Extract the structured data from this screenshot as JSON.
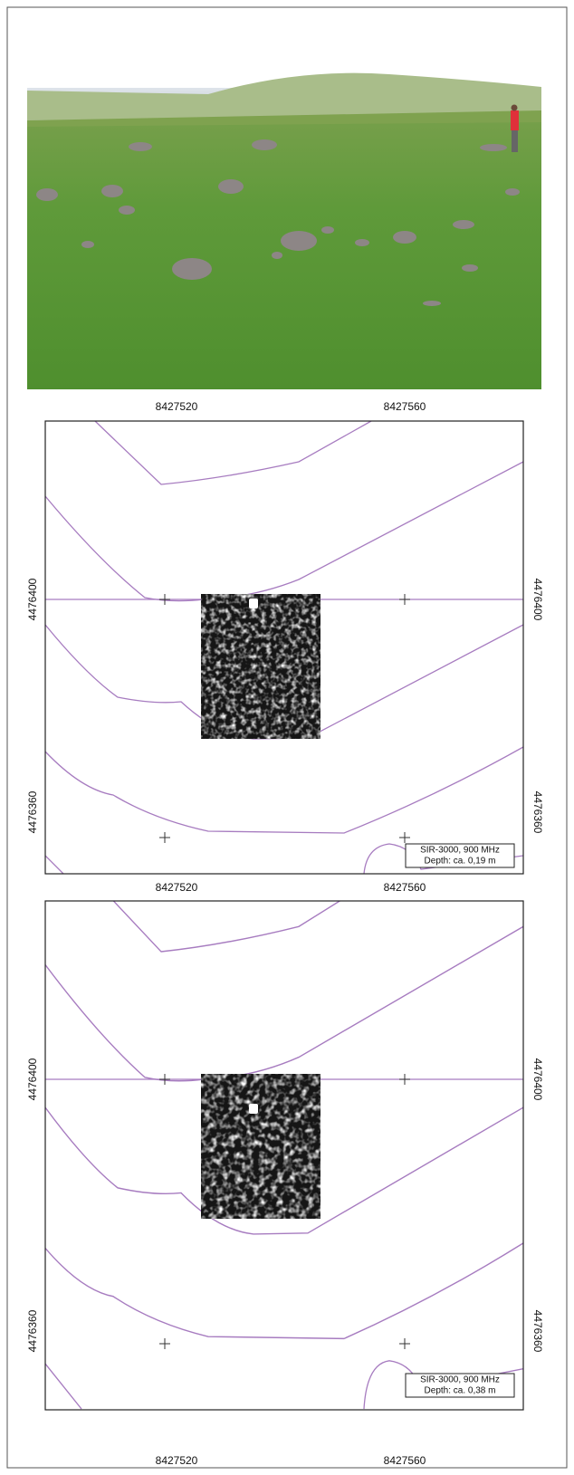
{
  "panels": [
    {
      "top_labels": [
        "8427520",
        "8427560"
      ],
      "left_labels": [
        "4476400",
        "4476360"
      ],
      "right_labels": [
        "4476400",
        "4476360"
      ],
      "bottom_labels": [
        "8427520",
        "8427560"
      ],
      "legend": [
        "SIR-3000, 900 MHz",
        "Depth: ca. 0,19 m"
      ]
    },
    {
      "left_labels": [
        "4476400",
        "4476360"
      ],
      "right_labels": [
        "4476400",
        "4476360"
      ],
      "bottom_labels": [
        "8427520",
        "8427560"
      ],
      "legend": [
        "SIR-3000, 900 MHz",
        "Depth: ca. 0,38 m"
      ]
    }
  ]
}
